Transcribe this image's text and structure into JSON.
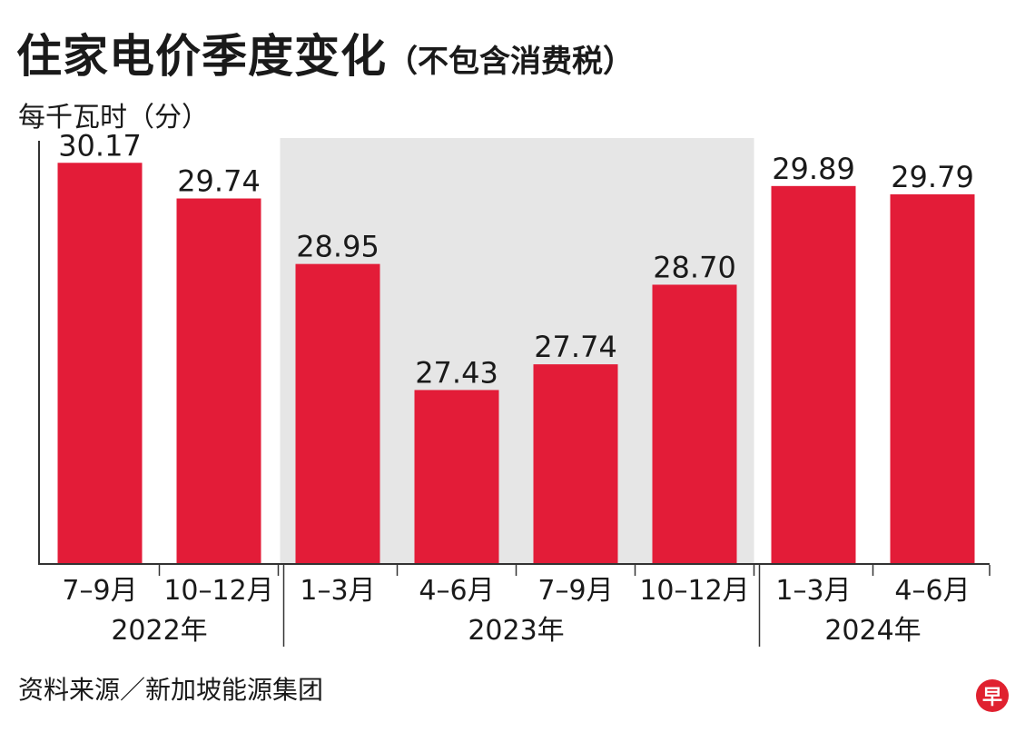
{
  "title": "住家电价季度变化",
  "subtitle": "（不包含消费税）",
  "unit_label": "每千瓦时（分）",
  "source": "资料来源／新加坡能源集团",
  "logo": {
    "text": "早",
    "icon": "zaobao-logo-icon"
  },
  "colors": {
    "bar": "#e31c38",
    "highlight": "#e6e6e6",
    "axis": "#333333",
    "text": "#1a1a1a"
  },
  "chart_data": {
    "type": "bar",
    "title": "住家电价季度变化",
    "ylabel": "每千瓦时（分）",
    "ylim": [
      0,
      30.6
    ],
    "categories": [
      "7–9月",
      "10–12月",
      "1–3月",
      "4–6月",
      "7–9月",
      "10–12月",
      "1–3月",
      "4–6月"
    ],
    "values": [
      30.17,
      29.74,
      28.95,
      27.43,
      27.74,
      28.7,
      29.89,
      29.79
    ],
    "data_labels": [
      "30.17",
      "29.74",
      "28.95",
      "27.43",
      "27.74",
      "28.70",
      "29.89",
      "29.79"
    ],
    "groups": [
      {
        "label": "2022年",
        "start": 0,
        "count": 2
      },
      {
        "label": "2023年",
        "start": 2,
        "count": 4,
        "highlighted": true
      },
      {
        "label": "2024年",
        "start": 6,
        "count": 2
      }
    ],
    "grid": false,
    "legend": "none"
  }
}
